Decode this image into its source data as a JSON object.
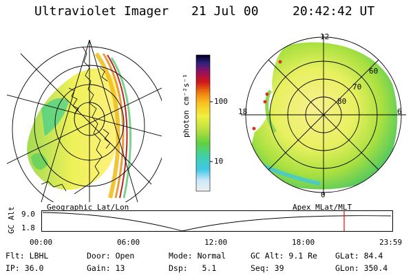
{
  "header": {
    "instrument": "Ultraviolet Imager",
    "date": "21 Jul 00",
    "time": "20:42:42 UT"
  },
  "colorbar": {
    "unit_label": "photon cm⁻²s⁻¹",
    "ticks": [
      "100",
      "10"
    ]
  },
  "left_panel": {
    "caption": "Geographic Lat/Lon"
  },
  "right_panel": {
    "caption": "Apex MLat/MLT",
    "mlt_labels": [
      "12",
      "18",
      "6",
      "0"
    ],
    "mlat_labels": [
      "60",
      "70",
      "80"
    ]
  },
  "altitude_plot": {
    "ylabel": "GC Alt",
    "y_ticks": [
      "9.0",
      "1.8"
    ],
    "x_ticks": [
      "00:00",
      "06:00",
      "12:00",
      "18:00",
      "23:59"
    ],
    "current_marker_color": "#ff0000"
  },
  "info": {
    "row1": [
      {
        "label": "Flt:",
        "value": "LBHL"
      },
      {
        "label": "Door:",
        "value": "Open"
      },
      {
        "label": "Mode:",
        "value": "Normal"
      },
      {
        "label": "GC Alt:",
        "value": "9.1 Re"
      },
      {
        "label": "GLat:",
        "value": "84.4"
      }
    ],
    "row2": [
      {
        "label": "IP:",
        "value": "36.0"
      },
      {
        "label": "Gain:",
        "value": "13"
      },
      {
        "label": "Dsp:",
        "value": "5.1"
      },
      {
        "label": "Seq:",
        "value": "39"
      },
      {
        "label": "GLon:",
        "value": "350.4"
      }
    ]
  }
}
